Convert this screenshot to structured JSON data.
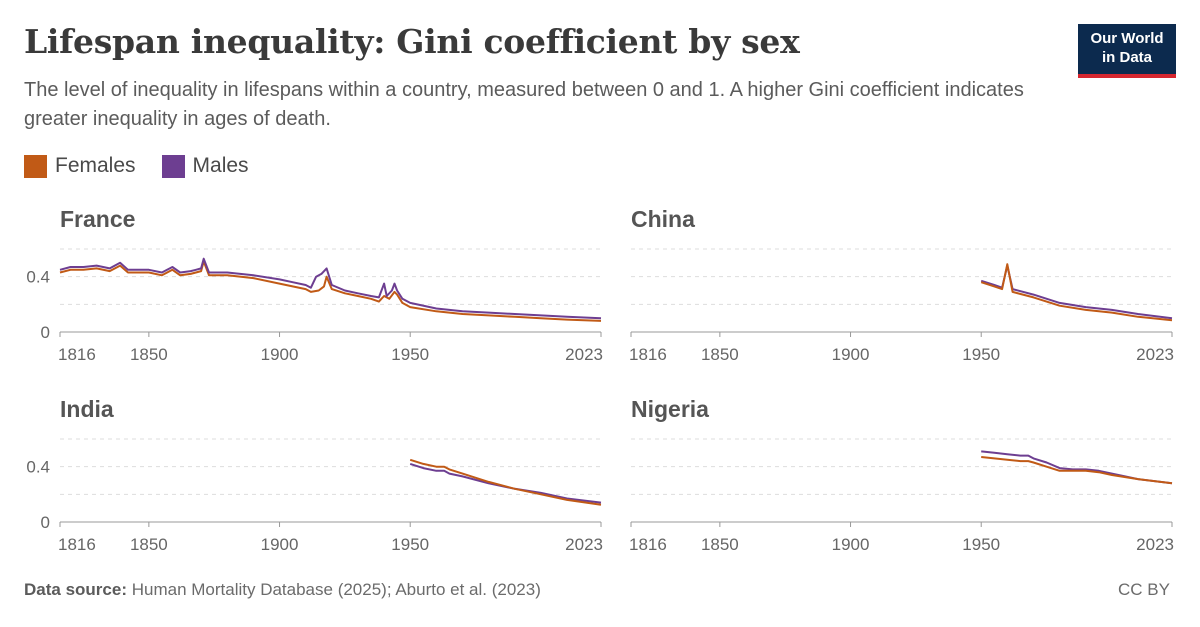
{
  "header": {
    "title": "Lifespan inequality: Gini coefficient by sex",
    "subtitle": "The level of inequality in lifespans within a country, measured between 0 and 1. A higher Gini coefficient indicates greater inequality in ages of death."
  },
  "logo": {
    "line1": "Our World",
    "line2": "in Data"
  },
  "legend": [
    {
      "label": "Females",
      "color": "#c15a16"
    },
    {
      "label": "Males",
      "color": "#6d3e91"
    }
  ],
  "footer": {
    "source_label": "Data source:",
    "source_text": "Human Mortality Database (2025); Aburto et al. (2023)",
    "license": "CC BY"
  },
  "chart_data": [
    {
      "type": "line",
      "title": "France",
      "xlim": [
        1816,
        2023
      ],
      "ylim": [
        0,
        0.6
      ],
      "x_ticks": [
        "1816",
        "1850",
        "1900",
        "1950",
        "2023"
      ],
      "y_ticks": [
        "0",
        "0.4"
      ],
      "series": [
        {
          "name": "Females",
          "color": "#c15a16",
          "points": [
            [
              1816,
              0.43
            ],
            [
              1820,
              0.45
            ],
            [
              1825,
              0.45
            ],
            [
              1830,
              0.46
            ],
            [
              1835,
              0.44
            ],
            [
              1839,
              0.48
            ],
            [
              1842,
              0.43
            ],
            [
              1850,
              0.43
            ],
            [
              1855,
              0.41
            ],
            [
              1859,
              0.45
            ],
            [
              1862,
              0.41
            ],
            [
              1866,
              0.42
            ],
            [
              1868,
              0.43
            ],
            [
              1870,
              0.44
            ],
            [
              1871,
              0.51
            ],
            [
              1873,
              0.41
            ],
            [
              1880,
              0.41
            ],
            [
              1890,
              0.39
            ],
            [
              1900,
              0.35
            ],
            [
              1905,
              0.33
            ],
            [
              1910,
              0.31
            ],
            [
              1912,
              0.29
            ],
            [
              1915,
              0.3
            ],
            [
              1917,
              0.33
            ],
            [
              1918,
              0.4
            ],
            [
              1920,
              0.31
            ],
            [
              1925,
              0.28
            ],
            [
              1930,
              0.26
            ],
            [
              1935,
              0.24
            ],
            [
              1938,
              0.22
            ],
            [
              1940,
              0.26
            ],
            [
              1942,
              0.24
            ],
            [
              1944,
              0.29
            ],
            [
              1945,
              0.27
            ],
            [
              1947,
              0.21
            ],
            [
              1950,
              0.18
            ],
            [
              1960,
              0.15
            ],
            [
              1970,
              0.13
            ],
            [
              1980,
              0.12
            ],
            [
              1990,
              0.11
            ],
            [
              2000,
              0.1
            ],
            [
              2010,
              0.09
            ],
            [
              2023,
              0.08
            ]
          ]
        },
        {
          "name": "Males",
          "color": "#6d3e91",
          "points": [
            [
              1816,
              0.45
            ],
            [
              1820,
              0.47
            ],
            [
              1825,
              0.47
            ],
            [
              1830,
              0.48
            ],
            [
              1835,
              0.46
            ],
            [
              1839,
              0.5
            ],
            [
              1842,
              0.45
            ],
            [
              1850,
              0.45
            ],
            [
              1855,
              0.43
            ],
            [
              1859,
              0.47
            ],
            [
              1862,
              0.43
            ],
            [
              1866,
              0.44
            ],
            [
              1868,
              0.45
            ],
            [
              1870,
              0.46
            ],
            [
              1871,
              0.53
            ],
            [
              1873,
              0.43
            ],
            [
              1880,
              0.43
            ],
            [
              1890,
              0.41
            ],
            [
              1900,
              0.38
            ],
            [
              1905,
              0.36
            ],
            [
              1910,
              0.34
            ],
            [
              1912,
              0.32
            ],
            [
              1914,
              0.4
            ],
            [
              1916,
              0.42
            ],
            [
              1918,
              0.46
            ],
            [
              1920,
              0.34
            ],
            [
              1925,
              0.3
            ],
            [
              1930,
              0.28
            ],
            [
              1935,
              0.26
            ],
            [
              1938,
              0.25
            ],
            [
              1940,
              0.35
            ],
            [
              1941,
              0.26
            ],
            [
              1943,
              0.3
            ],
            [
              1944,
              0.35
            ],
            [
              1945,
              0.3
            ],
            [
              1947,
              0.24
            ],
            [
              1950,
              0.21
            ],
            [
              1960,
              0.17
            ],
            [
              1970,
              0.15
            ],
            [
              1980,
              0.14
            ],
            [
              1990,
              0.13
            ],
            [
              2000,
              0.12
            ],
            [
              2010,
              0.11
            ],
            [
              2023,
              0.1
            ]
          ]
        }
      ]
    },
    {
      "type": "line",
      "title": "China",
      "xlim": [
        1816,
        2023
      ],
      "ylim": [
        0,
        0.6
      ],
      "x_ticks": [
        "1816",
        "1850",
        "1900",
        "1950",
        "2023"
      ],
      "y_ticks": [
        "0",
        "0.4"
      ],
      "series": [
        {
          "name": "Males",
          "color": "#6d3e91",
          "points": [
            [
              1950,
              0.37
            ],
            [
              1955,
              0.34
            ],
            [
              1958,
              0.32
            ],
            [
              1960,
              0.48
            ],
            [
              1962,
              0.31
            ],
            [
              1970,
              0.27
            ],
            [
              1980,
              0.21
            ],
            [
              1990,
              0.18
            ],
            [
              2000,
              0.16
            ],
            [
              2010,
              0.13
            ],
            [
              2023,
              0.1
            ]
          ]
        },
        {
          "name": "Females",
          "color": "#c15a16",
          "points": [
            [
              1950,
              0.36
            ],
            [
              1955,
              0.33
            ],
            [
              1958,
              0.31
            ],
            [
              1960,
              0.49
            ],
            [
              1962,
              0.29
            ],
            [
              1970,
              0.25
            ],
            [
              1980,
              0.19
            ],
            [
              1990,
              0.16
            ],
            [
              2000,
              0.14
            ],
            [
              2010,
              0.11
            ],
            [
              2023,
              0.085
            ]
          ]
        }
      ]
    },
    {
      "type": "line",
      "title": "India",
      "xlim": [
        1816,
        2023
      ],
      "ylim": [
        0,
        0.6
      ],
      "x_ticks": [
        "1816",
        "1850",
        "1900",
        "1950",
        "2023"
      ],
      "y_ticks": [
        "0",
        "0.4"
      ],
      "series": [
        {
          "name": "Males",
          "color": "#6d3e91",
          "points": [
            [
              1950,
              0.42
            ],
            [
              1955,
              0.39
            ],
            [
              1960,
              0.37
            ],
            [
              1963,
              0.37
            ],
            [
              1965,
              0.35
            ],
            [
              1970,
              0.33
            ],
            [
              1980,
              0.28
            ],
            [
              1990,
              0.24
            ],
            [
              2000,
              0.21
            ],
            [
              2010,
              0.17
            ],
            [
              2023,
              0.14
            ]
          ]
        },
        {
          "name": "Females",
          "color": "#c15a16",
          "points": [
            [
              1950,
              0.45
            ],
            [
              1955,
              0.42
            ],
            [
              1960,
              0.4
            ],
            [
              1963,
              0.4
            ],
            [
              1965,
              0.38
            ],
            [
              1970,
              0.35
            ],
            [
              1980,
              0.29
            ],
            [
              1990,
              0.24
            ],
            [
              2000,
              0.2
            ],
            [
              2010,
              0.16
            ],
            [
              2023,
              0.125
            ]
          ]
        }
      ]
    },
    {
      "type": "line",
      "title": "Nigeria",
      "xlim": [
        1816,
        2023
      ],
      "ylim": [
        0,
        0.6
      ],
      "x_ticks": [
        "1816",
        "1850",
        "1900",
        "1950",
        "2023"
      ],
      "y_ticks": [
        "0",
        "0.4"
      ],
      "series": [
        {
          "name": "Males",
          "color": "#6d3e91",
          "points": [
            [
              1950,
              0.51
            ],
            [
              1955,
              0.5
            ],
            [
              1960,
              0.49
            ],
            [
              1965,
              0.48
            ],
            [
              1968,
              0.48
            ],
            [
              1970,
              0.46
            ],
            [
              1975,
              0.43
            ],
            [
              1980,
              0.39
            ],
            [
              1985,
              0.38
            ],
            [
              1990,
              0.38
            ],
            [
              1995,
              0.37
            ],
            [
              2000,
              0.35
            ],
            [
              2010,
              0.31
            ],
            [
              2023,
              0.28
            ]
          ]
        },
        {
          "name": "Females",
          "color": "#c15a16",
          "points": [
            [
              1950,
              0.47
            ],
            [
              1955,
              0.46
            ],
            [
              1960,
              0.45
            ],
            [
              1965,
              0.44
            ],
            [
              1968,
              0.44
            ],
            [
              1970,
              0.43
            ],
            [
              1975,
              0.4
            ],
            [
              1980,
              0.37
            ],
            [
              1985,
              0.37
            ],
            [
              1990,
              0.37
            ],
            [
              1995,
              0.36
            ],
            [
              2000,
              0.34
            ],
            [
              2010,
              0.31
            ],
            [
              2023,
              0.28
            ]
          ]
        }
      ]
    }
  ]
}
